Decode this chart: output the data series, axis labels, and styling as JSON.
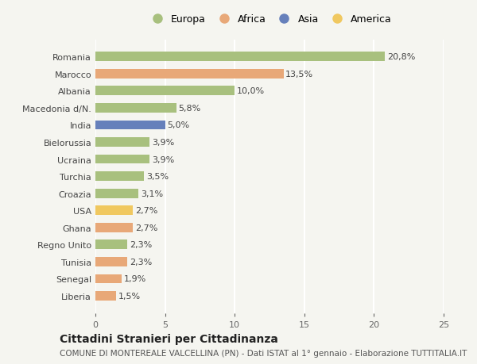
{
  "countries": [
    "Romania",
    "Marocco",
    "Albania",
    "Macedonia d/N.",
    "India",
    "Bielorussia",
    "Ucraina",
    "Turchia",
    "Croazia",
    "USA",
    "Ghana",
    "Regno Unito",
    "Tunisia",
    "Senegal",
    "Liberia"
  ],
  "values": [
    20.8,
    13.5,
    10.0,
    5.8,
    5.0,
    3.9,
    3.9,
    3.5,
    3.1,
    2.7,
    2.7,
    2.3,
    2.3,
    1.9,
    1.5
  ],
  "labels": [
    "20,8%",
    "13,5%",
    "10,0%",
    "5,8%",
    "5,0%",
    "3,9%",
    "3,9%",
    "3,5%",
    "3,1%",
    "2,7%",
    "2,7%",
    "2,3%",
    "2,3%",
    "1,9%",
    "1,5%"
  ],
  "continents": [
    "Europa",
    "Africa",
    "Europa",
    "Europa",
    "Asia",
    "Europa",
    "Europa",
    "Europa",
    "Europa",
    "America",
    "Africa",
    "Europa",
    "Africa",
    "Africa",
    "Africa"
  ],
  "colors": {
    "Europa": "#a8c07e",
    "Africa": "#e8a878",
    "Asia": "#6680bb",
    "America": "#f0c860"
  },
  "legend_order": [
    "Europa",
    "Africa",
    "Asia",
    "America"
  ],
  "xlim": [
    0,
    25
  ],
  "xticks": [
    0,
    5,
    10,
    15,
    20,
    25
  ],
  "title": "Cittadini Stranieri per Cittadinanza",
  "subtitle": "COMUNE DI MONTEREALE VALCELLINA (PN) - Dati ISTAT al 1° gennaio - Elaborazione TUTTITALIA.IT",
  "background_color": "#f5f5f0",
  "bar_height": 0.55,
  "title_fontsize": 10,
  "subtitle_fontsize": 7.5,
  "label_fontsize": 8,
  "ytick_fontsize": 8,
  "xtick_fontsize": 8
}
